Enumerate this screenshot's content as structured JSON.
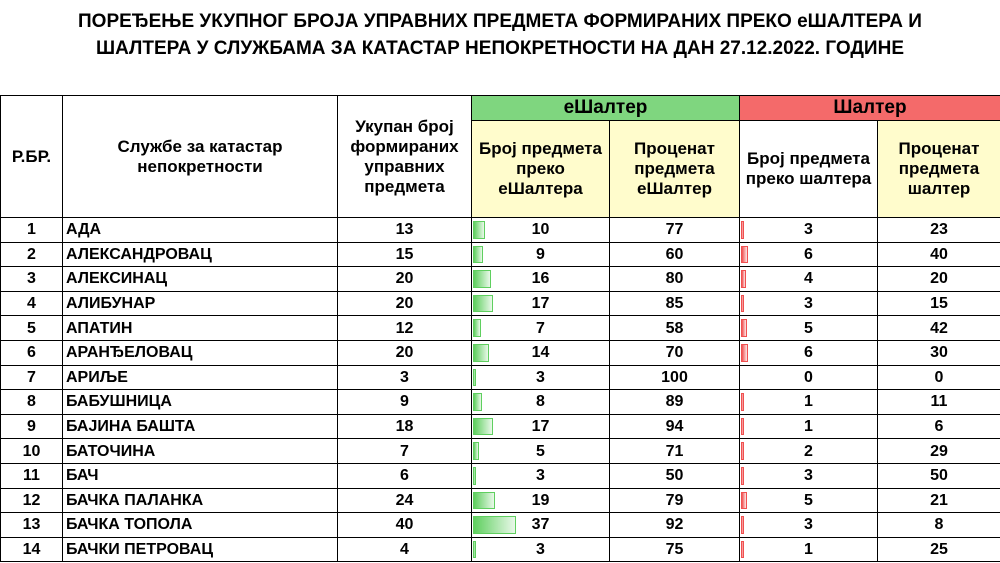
{
  "title_line1": "ПОРЕЂЕЊЕ УКУПНОГ БРОЈА УПРАВНИХ ПРЕДМЕТА ФОРМИРАНИХ ПРЕКО еШАЛТЕРА И",
  "title_line2": "ШАЛТЕРА У СЛУЖБАМА ЗА КАТАСТАР НЕПОКРЕТНОСТИ НА ДАН 27.12.2022. ГОДИНЕ",
  "headers": {
    "rbr": "Р.БР.",
    "office": "Службе за катастар непокретности",
    "total": "Укупан број формираних управних предмета",
    "eshalter_group": "еШалтер",
    "eshalter_count": "Број предмета преко еШалтера",
    "eshalter_pct": "Проценат предмета еШалтер",
    "shalter_group": "Шалтер",
    "shalter_count": "Број предмета преко шалтера",
    "shalter_pct": "Проценат предмета шалтер"
  },
  "colors": {
    "eshalter": "#7fd67f",
    "shalter": "#f46a6a",
    "highlight": "#fffccc"
  },
  "bar_max": 40,
  "rows": [
    {
      "rbr": "1",
      "name": "АДА",
      "total": "13",
      "e_count": "10",
      "e_pct": "77",
      "s_count": "3",
      "s_pct": "23"
    },
    {
      "rbr": "2",
      "name": "АЛЕКСАНДРОВАЦ",
      "total": "15",
      "e_count": "9",
      "e_pct": "60",
      "s_count": "6",
      "s_pct": "40"
    },
    {
      "rbr": "3",
      "name": "АЛЕКСИНАЦ",
      "total": "20",
      "e_count": "16",
      "e_pct": "80",
      "s_count": "4",
      "s_pct": "20"
    },
    {
      "rbr": "4",
      "name": "АЛИБУНАР",
      "total": "20",
      "e_count": "17",
      "e_pct": "85",
      "s_count": "3",
      "s_pct": "15"
    },
    {
      "rbr": "5",
      "name": "АПАТИН",
      "total": "12",
      "e_count": "7",
      "e_pct": "58",
      "s_count": "5",
      "s_pct": "42"
    },
    {
      "rbr": "6",
      "name": "АРАНЂЕЛОВАЦ",
      "total": "20",
      "e_count": "14",
      "e_pct": "70",
      "s_count": "6",
      "s_pct": "30"
    },
    {
      "rbr": "7",
      "name": "АРИЉЕ",
      "total": "3",
      "e_count": "3",
      "e_pct": "100",
      "s_count": "0",
      "s_pct": "0"
    },
    {
      "rbr": "8",
      "name": "БАБУШНИЦА",
      "total": "9",
      "e_count": "8",
      "e_pct": "89",
      "s_count": "1",
      "s_pct": "11"
    },
    {
      "rbr": "9",
      "name": "БАЈИНА БАШТА",
      "total": "18",
      "e_count": "17",
      "e_pct": "94",
      "s_count": "1",
      "s_pct": "6"
    },
    {
      "rbr": "10",
      "name": "БАТОЧИНА",
      "total": "7",
      "e_count": "5",
      "e_pct": "71",
      "s_count": "2",
      "s_pct": "29"
    },
    {
      "rbr": "11",
      "name": "БАЧ",
      "total": "6",
      "e_count": "3",
      "e_pct": "50",
      "s_count": "3",
      "s_pct": "50"
    },
    {
      "rbr": "12",
      "name": "БАЧКА ПАЛАНКА",
      "total": "24",
      "e_count": "19",
      "e_pct": "79",
      "s_count": "5",
      "s_pct": "21"
    },
    {
      "rbr": "13",
      "name": "БАЧКА ТОПОЛА",
      "total": "40",
      "e_count": "37",
      "e_pct": "92",
      "s_count": "3",
      "s_pct": "8"
    },
    {
      "rbr": "14",
      "name": "БАЧКИ ПЕТРОВАЦ",
      "total": "4",
      "e_count": "3",
      "e_pct": "75",
      "s_count": "1",
      "s_pct": "25"
    }
  ]
}
